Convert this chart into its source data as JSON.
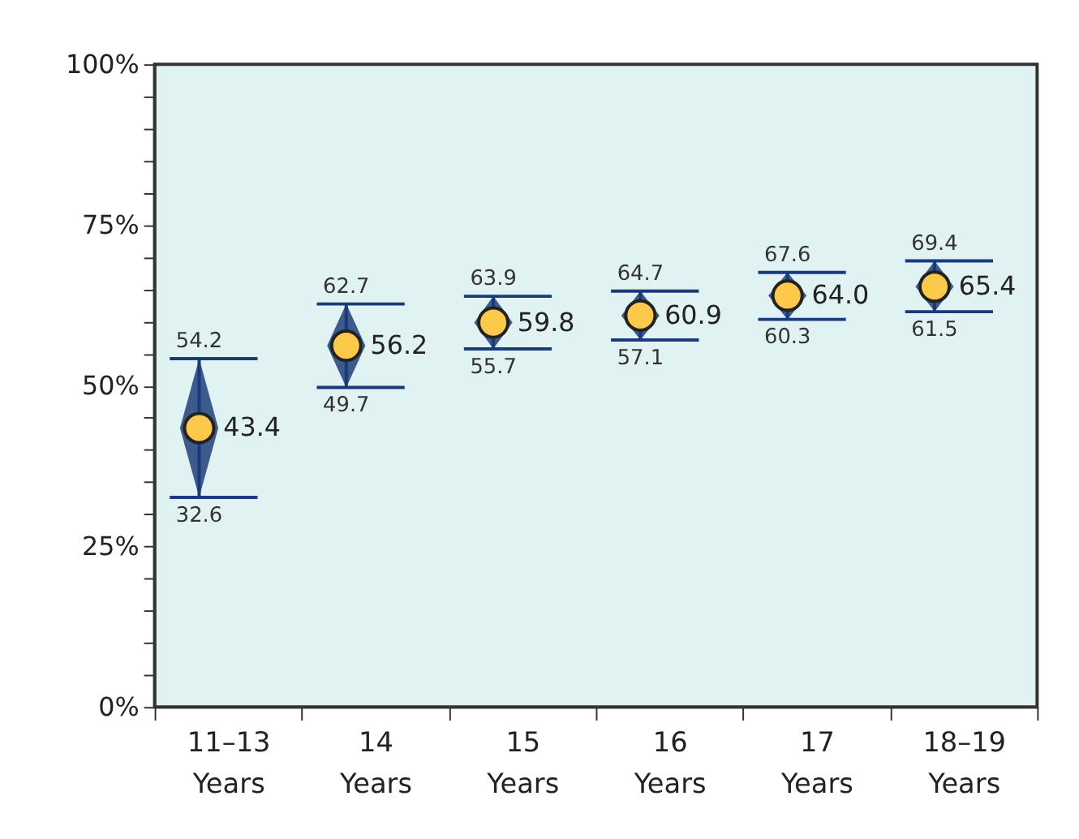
{
  "chart_data": {
    "type": "scatter",
    "categories": [
      "11–13 Years",
      "14 Years",
      "15 Years",
      "16 Years",
      "17 Years",
      "18–19 Years"
    ],
    "series": [
      {
        "color": "#fdc94a",
        "values": [
          43.4,
          56.2,
          59.8,
          60.9,
          64.0,
          65.4
        ],
        "value_labels": [
          "43.4",
          "56.2",
          "59.8",
          "60.9",
          "64.0",
          "65.4"
        ],
        "errors": [
          [
            32.6,
            54.2
          ],
          [
            49.7,
            62.7
          ],
          [
            55.7,
            63.9
          ],
          [
            57.1,
            64.7
          ],
          [
            60.3,
            67.6
          ],
          [
            61.5,
            69.4
          ]
        ]
      }
    ],
    "annotations": [
      "54.2",
      "32.6",
      "62.7",
      "49.7",
      "63.9",
      "55.7",
      "64.7",
      "57.1",
      "67.6",
      "60.3",
      "69.4",
      "61.5"
    ],
    "ylim": [
      0,
      100
    ],
    "yticks": [
      {
        "value": 0,
        "label": "0%"
      },
      {
        "value": 5,
        "label": null
      },
      {
        "value": 10,
        "label": null
      },
      {
        "value": 15,
        "label": null
      },
      {
        "value": 20,
        "label": null
      },
      {
        "value": 25,
        "label": "25%"
      },
      {
        "value": 30,
        "label": null
      },
      {
        "value": 35,
        "label": null
      },
      {
        "value": 40,
        "label": null
      },
      {
        "value": 45,
        "label": null
      },
      {
        "value": 50,
        "label": "50%"
      },
      {
        "value": 55,
        "label": null
      },
      {
        "value": 60,
        "label": null
      },
      {
        "value": 65,
        "label": null
      },
      {
        "value": 70,
        "label": null
      },
      {
        "value": 75,
        "label": "75%"
      },
      {
        "value": 80,
        "label": null
      },
      {
        "value": 85,
        "label": null
      },
      {
        "value": 90,
        "label": null
      },
      {
        "value": 95,
        "label": null
      },
      {
        "value": 100,
        "label": "100%"
      }
    ],
    "marker": "circle",
    "grid": false
  }
}
